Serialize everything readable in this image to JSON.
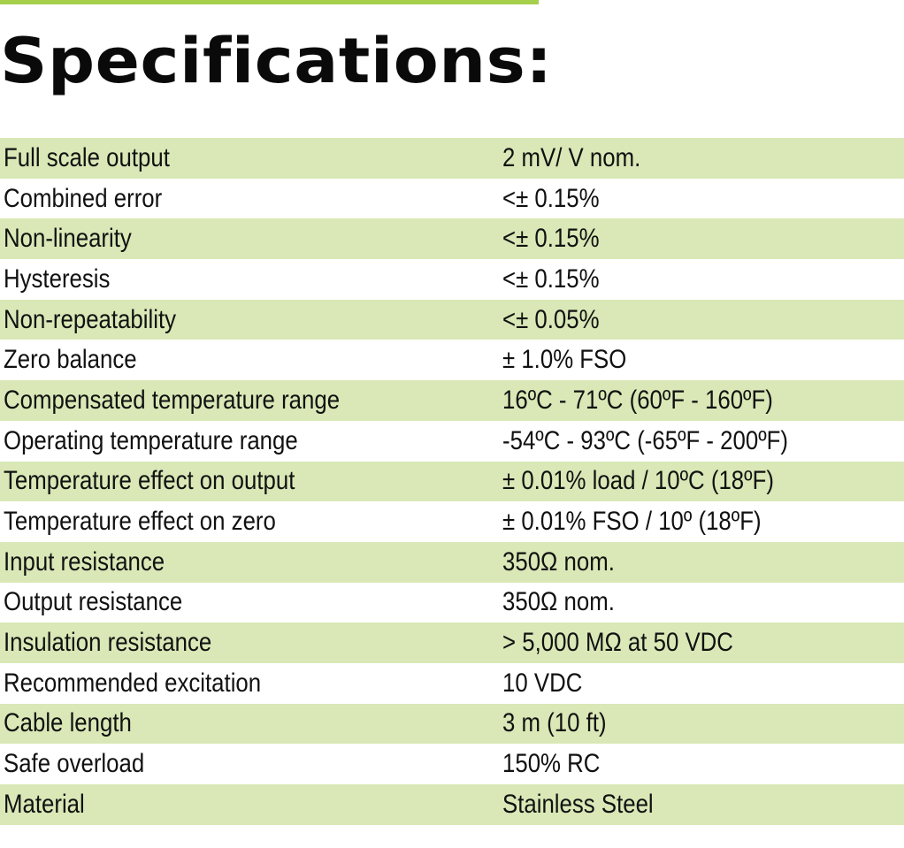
{
  "title": "Specifications:",
  "colors": {
    "accent": "#a6cf4c",
    "row_shade": "#d9e8b6",
    "text": "#111111"
  },
  "specs": [
    {
      "label": "Full scale output",
      "value": "2 mV/ V nom."
    },
    {
      "label": "Combined error",
      "value": "<± 0.15%"
    },
    {
      "label": "Non-linearity",
      "value": "<± 0.15%"
    },
    {
      "label": "Hysteresis",
      "value": "<± 0.15%"
    },
    {
      "label": "Non-repeatability",
      "value": "<± 0.05%"
    },
    {
      "label": "Zero balance",
      "value": "± 1.0% FSO"
    },
    {
      "label": "Compensated temperature range",
      "value": "16ºC - 71ºC (60ºF - 160ºF)"
    },
    {
      "label": "Operating temperature range",
      "value": "-54ºC - 93ºC (-65ºF - 200ºF)"
    },
    {
      "label": "Temperature effect on output",
      "value": "± 0.01% load / 10ºC (18ºF)"
    },
    {
      "label": "Temperature effect on zero",
      "value": "± 0.01% FSO / 10º (18ºF)"
    },
    {
      "label": "Input resistance",
      "value": "350Ω nom."
    },
    {
      "label": "Output resistance",
      "value": "350Ω nom."
    },
    {
      "label": "Insulation resistance",
      "value": "> 5,000 MΩ at 50 VDC"
    },
    {
      "label": "Recommended excitation",
      "value": "10 VDC"
    },
    {
      "label": "Cable length",
      "value": "3 m (10 ft)"
    },
    {
      "label": "Safe overload",
      "value": "150% RC"
    },
    {
      "label": "Material",
      "value": "Stainless Steel"
    }
  ]
}
